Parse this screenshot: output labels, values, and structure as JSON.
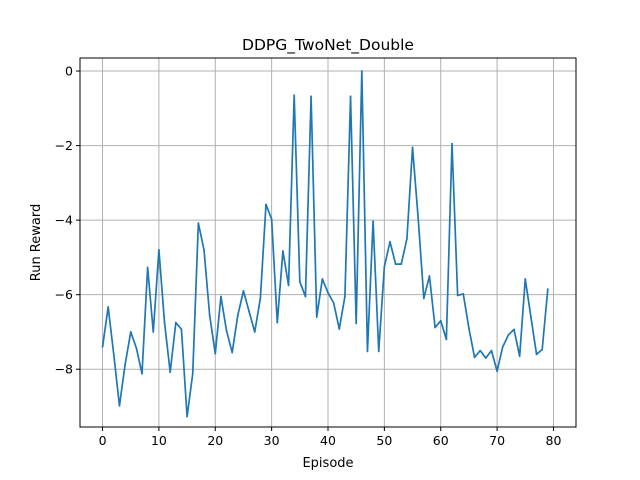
{
  "chart_data": {
    "type": "line",
    "title": "DDPG_TwoNet_Double",
    "xlabel": "Episode",
    "ylabel": "Run Reward",
    "xlim": [
      -4,
      84
    ],
    "ylim": [
      -9.55,
      0.35
    ],
    "xticks": [
      0,
      10,
      20,
      30,
      40,
      50,
      60,
      70,
      80
    ],
    "yticks": [
      0,
      -2,
      -4,
      -6,
      -8
    ],
    "ytick_labels": [
      "0",
      "−2",
      "−4",
      "−6",
      "−8"
    ],
    "grid": true,
    "line_color": "#1f77b4",
    "x": [
      0,
      1,
      2,
      3,
      4,
      5,
      6,
      7,
      8,
      9,
      10,
      11,
      12,
      13,
      14,
      15,
      16,
      17,
      18,
      19,
      20,
      21,
      22,
      23,
      24,
      25,
      26,
      27,
      28,
      29,
      30,
      31,
      32,
      33,
      34,
      35,
      36,
      37,
      38,
      39,
      40,
      41,
      42,
      43,
      44,
      45,
      46,
      47,
      48,
      49,
      50,
      51,
      52,
      53,
      54,
      55,
      56,
      57,
      58,
      59,
      60,
      61,
      62,
      63,
      64,
      65,
      66,
      67,
      68,
      69,
      70,
      71,
      72,
      73,
      74,
      75,
      76,
      77,
      78,
      79
    ],
    "values": [
      -7.4,
      -6.33,
      -7.62,
      -8.98,
      -7.88,
      -7.0,
      -7.43,
      -8.12,
      -5.27,
      -7.0,
      -4.8,
      -6.75,
      -8.08,
      -6.75,
      -6.93,
      -9.27,
      -8.12,
      -4.08,
      -4.8,
      -6.55,
      -7.58,
      -6.05,
      -6.97,
      -7.55,
      -6.55,
      -5.9,
      -6.45,
      -7.0,
      -6.1,
      -3.58,
      -3.97,
      -6.75,
      -4.83,
      -5.75,
      -0.65,
      -5.65,
      -6.05,
      -0.68,
      -6.6,
      -5.58,
      -5.95,
      -6.22,
      -6.92,
      -6.05,
      -0.68,
      -6.77,
      0.0,
      -7.52,
      -4.03,
      -7.52,
      -5.25,
      -4.58,
      -5.18,
      -5.18,
      -4.5,
      -2.05,
      -3.95,
      -6.1,
      -5.5,
      -6.88,
      -6.7,
      -7.2,
      -1.95,
      -6.02,
      -5.98,
      -6.9,
      -7.68,
      -7.5,
      -7.7,
      -7.5,
      -8.05,
      -7.4,
      -7.08,
      -6.93,
      -7.65,
      -5.58,
      -6.6,
      -7.6,
      -7.47,
      -5.85
    ]
  }
}
